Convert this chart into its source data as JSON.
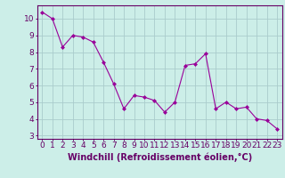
{
  "x": [
    0,
    1,
    2,
    3,
    4,
    5,
    6,
    7,
    8,
    9,
    10,
    11,
    12,
    13,
    14,
    15,
    16,
    17,
    18,
    19,
    20,
    21,
    22,
    23
  ],
  "y": [
    10.4,
    10.0,
    8.3,
    9.0,
    8.9,
    8.6,
    7.4,
    6.1,
    4.6,
    5.4,
    5.3,
    5.1,
    4.4,
    5.0,
    7.2,
    7.3,
    7.9,
    4.6,
    5.0,
    4.6,
    4.7,
    4.0,
    3.9,
    3.4
  ],
  "line_color": "#990099",
  "marker": "D",
  "marker_size": 2.0,
  "background_color": "#cceee8",
  "grid_color": "#aacccc",
  "xlabel": "Windchill (Refroidissement éolien,°C)",
  "xlabel_fontsize": 7,
  "xtick_labels": [
    "0",
    "1",
    "2",
    "3",
    "4",
    "5",
    "6",
    "7",
    "8",
    "9",
    "10",
    "11",
    "12",
    "13",
    "14",
    "15",
    "16",
    "17",
    "18",
    "19",
    "20",
    "21",
    "22",
    "23"
  ],
  "ylim": [
    2.8,
    10.8
  ],
  "yticks": [
    3,
    4,
    5,
    6,
    7,
    8,
    9,
    10
  ],
  "tick_fontsize": 6.5,
  "axis_color": "#660066"
}
